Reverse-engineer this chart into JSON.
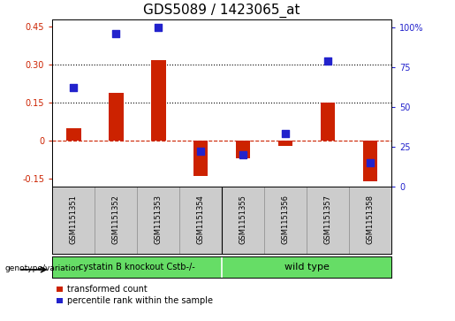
{
  "title": "GDS5089 / 1423065_at",
  "samples": [
    "GSM1151351",
    "GSM1151352",
    "GSM1151353",
    "GSM1151354",
    "GSM1151355",
    "GSM1151356",
    "GSM1151357",
    "GSM1151358"
  ],
  "transformed_count": [
    0.05,
    0.19,
    0.32,
    -0.14,
    -0.07,
    -0.02,
    0.15,
    -0.16
  ],
  "percentile_rank": [
    62,
    96,
    100,
    22,
    20,
    33,
    79,
    15
  ],
  "bar_color": "#cc2200",
  "dot_color": "#2222cc",
  "ylim_left": [
    -0.18,
    0.48
  ],
  "ylim_right": [
    0,
    105
  ],
  "yticks_left": [
    -0.15,
    0.0,
    0.15,
    0.3,
    0.45
  ],
  "yticks_right": [
    0,
    25,
    50,
    75,
    100
  ],
  "ytick_labels_left": [
    "-0.15",
    "0",
    "0.15",
    "0.30",
    "0.45"
  ],
  "ytick_labels_right": [
    "0",
    "25",
    "50",
    "75",
    "100%"
  ],
  "hlines": [
    0.0,
    0.15,
    0.3
  ],
  "hline_styles": [
    "dashed",
    "dotted",
    "dotted"
  ],
  "hline_colors": [
    "#cc2200",
    "#000000",
    "#000000"
  ],
  "group1_label": "cystatin B knockout Cstb-/-",
  "group2_label": "wild type",
  "group1_count": 4,
  "group2_count": 4,
  "group_color": "#66dd66",
  "group_text_color": "#000000",
  "xlabel_left": "genotype/variation",
  "legend_red_label": "transformed count",
  "legend_blue_label": "percentile rank within the sample",
  "bar_width": 0.35,
  "dot_size": 28,
  "title_fontsize": 11,
  "tick_label_fontsize": 7,
  "sample_label_fontsize": 6,
  "group_label_fontsize": 7
}
